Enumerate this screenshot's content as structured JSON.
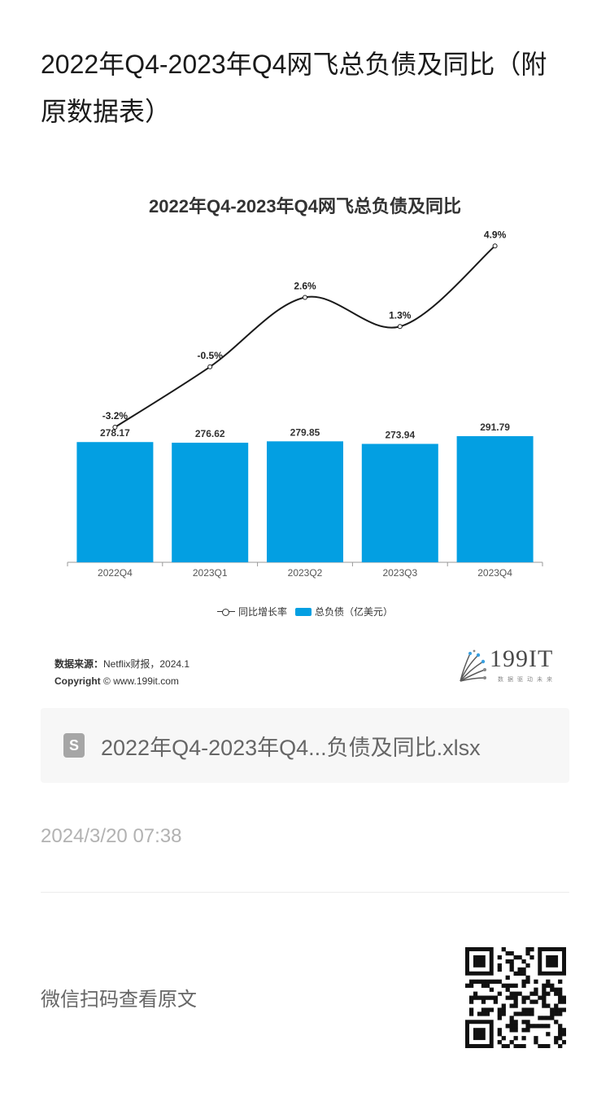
{
  "page": {
    "title": "2022年Q4-2023年Q4网飞总负债及同比（附原数据表）"
  },
  "chart_data": {
    "type": "bar",
    "title": "2022年Q4-2023年Q4网飞总负债及同比",
    "categories": [
      "2022Q4",
      "2023Q1",
      "2023Q2",
      "2023Q3",
      "2023Q4"
    ],
    "series": [
      {
        "name": "总负债（亿美元）",
        "type": "bar",
        "values": [
          278.17,
          276.62,
          279.85,
          273.94,
          291.79
        ],
        "labels": [
          "278.17",
          "276.62",
          "279.85",
          "273.94",
          "291.79"
        ],
        "color": "#039fe2"
      },
      {
        "name": "同比增长率",
        "type": "line",
        "values": [
          -3.2,
          -0.5,
          2.6,
          1.3,
          4.9
        ],
        "labels": [
          "-3.2%",
          "-0.5%",
          "2.6%",
          "1.3%",
          "4.9%"
        ],
        "color": "#1a1a1a"
      }
    ],
    "legend_position": "bottom",
    "grid": false
  },
  "source": {
    "label": "数据来源：",
    "text": "Netflix财报，2024.1",
    "copyright_label": "Copyright",
    "copyright_text": "© www.199it.com"
  },
  "logo": {
    "text": "199IT",
    "sub": "数据驱动未来"
  },
  "file": {
    "icon": "S",
    "name": "2022年Q4-2023年Q4...负债及同比.xlsx"
  },
  "meta": {
    "timestamp": "2024/3/20 07:38"
  },
  "footer": {
    "qr_label": "微信扫码查看原文"
  }
}
